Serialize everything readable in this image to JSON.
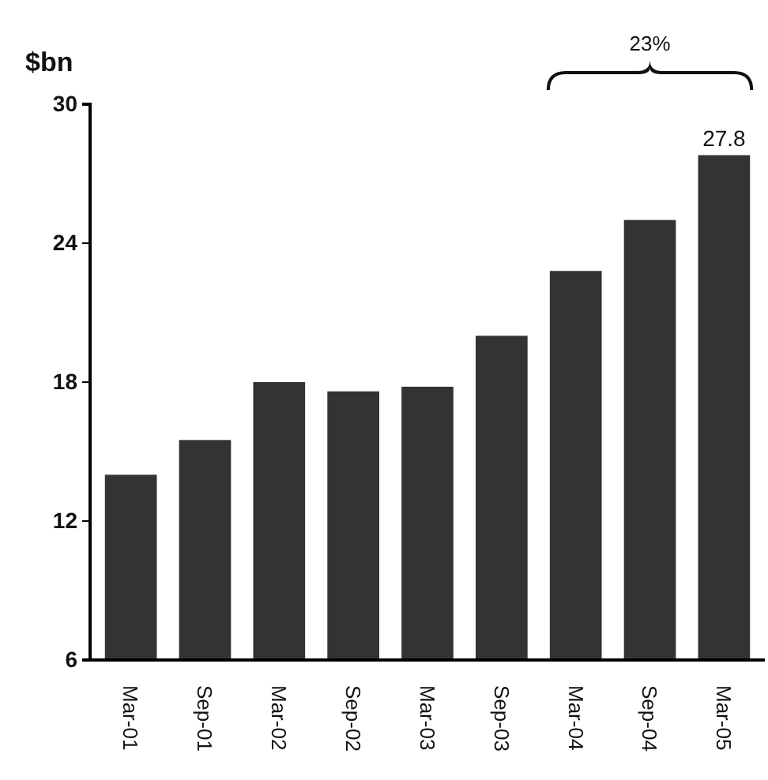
{
  "chart_data": {
    "type": "bar",
    "ylabel": "$bn",
    "categories": [
      "Mar-01",
      "Sep-01",
      "Mar-02",
      "Sep-02",
      "Mar-03",
      "Sep-03",
      "Mar-04",
      "Sep-04",
      "Mar-05"
    ],
    "values": [
      14.0,
      15.5,
      18.0,
      17.6,
      17.8,
      20.0,
      22.8,
      25.0,
      27.8
    ],
    "value_labels": [
      null,
      null,
      null,
      null,
      null,
      null,
      null,
      null,
      "27.8"
    ],
    "color": "#333333",
    "ylim": [
      6,
      30
    ],
    "yticks": [
      6,
      12,
      18,
      24,
      30
    ],
    "annotations": [
      "23%"
    ]
  }
}
